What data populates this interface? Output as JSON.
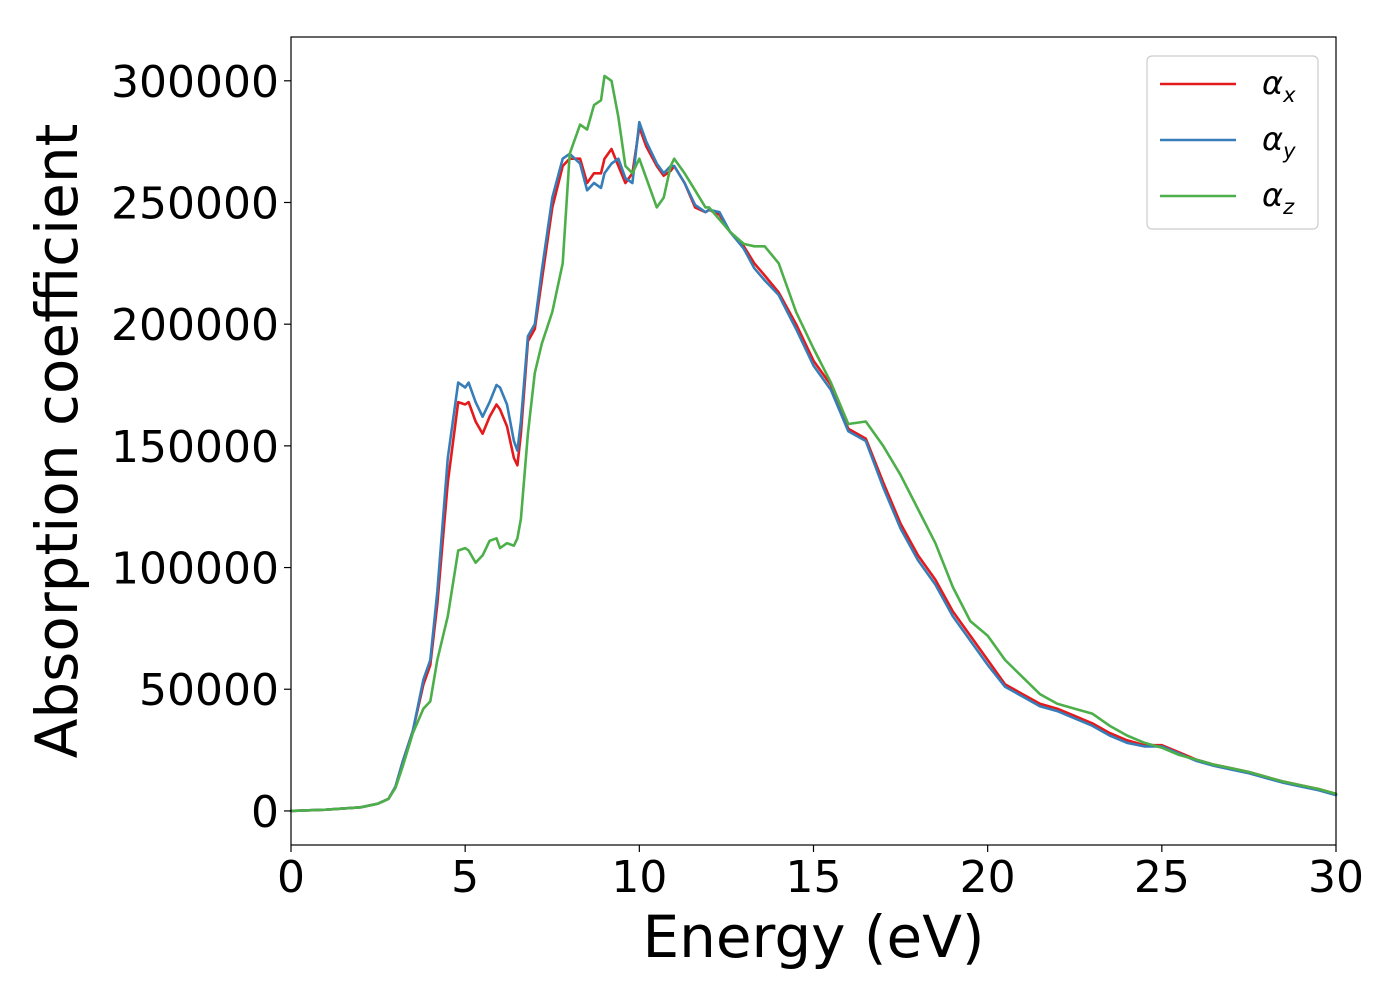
{
  "chart_data": {
    "type": "line",
    "title": "",
    "xlabel": "Energy (eV)",
    "ylabel": "Absorption coefficient",
    "xlim": [
      0,
      30
    ],
    "ylim": [
      -14000,
      318000
    ],
    "xticks": [
      0,
      5,
      10,
      15,
      20,
      25,
      30
    ],
    "yticks": [
      0,
      50000,
      100000,
      150000,
      200000,
      250000,
      300000
    ],
    "grid": false,
    "legend_position": "top-right",
    "series": [
      {
        "name": "αx",
        "symbol": "α",
        "subscript": "x",
        "color": "#e41a1c",
        "x": [
          0,
          1,
          2,
          2.5,
          2.8,
          3.0,
          3.2,
          3.5,
          3.8,
          4.0,
          4.2,
          4.5,
          4.8,
          5.0,
          5.1,
          5.3,
          5.5,
          5.7,
          5.9,
          6.0,
          6.2,
          6.4,
          6.5,
          6.6,
          6.8,
          7.0,
          7.2,
          7.5,
          7.8,
          8.0,
          8.3,
          8.5,
          8.7,
          8.9,
          9.0,
          9.2,
          9.4,
          9.6,
          9.8,
          10.0,
          10.2,
          10.5,
          10.7,
          10.9,
          11.0,
          11.3,
          11.6,
          11.9,
          12.0,
          12.3,
          12.6,
          13.0,
          13.3,
          13.6,
          14.0,
          14.5,
          15.0,
          15.5,
          16.0,
          16.5,
          17.0,
          17.5,
          18.0,
          18.5,
          19.0,
          19.5,
          20.0,
          20.5,
          21.0,
          21.5,
          22.0,
          22.5,
          23.0,
          23.5,
          24.0,
          24.5,
          25.0,
          25.5,
          26.0,
          26.5,
          27.0,
          27.5,
          28.0,
          28.5,
          29.0,
          29.5,
          30.0
        ],
        "values": [
          0,
          500,
          1500,
          3000,
          5000,
          10000,
          20000,
          33000,
          52000,
          60000,
          85000,
          135000,
          168000,
          167000,
          168000,
          160000,
          155000,
          162000,
          167000,
          165000,
          158000,
          145000,
          142000,
          155000,
          193000,
          198000,
          218000,
          248000,
          265000,
          268000,
          268000,
          258000,
          262000,
          262000,
          268000,
          272000,
          265000,
          258000,
          262000,
          281000,
          273000,
          265000,
          261000,
          263000,
          265000,
          258000,
          248000,
          246000,
          247000,
          245000,
          238000,
          232000,
          225000,
          220000,
          213000,
          200000,
          185000,
          175000,
          157000,
          153000,
          135000,
          118000,
          105000,
          95000,
          82000,
          72000,
          62000,
          52000,
          48000,
          44000,
          42000,
          39000,
          36000,
          32000,
          29000,
          27000,
          27000,
          24000,
          21000,
          19000,
          17500,
          16000,
          14000,
          12000,
          10500,
          9000,
          7000
        ]
      },
      {
        "name": "αy",
        "symbol": "α",
        "subscript": "y",
        "color": "#377eb8",
        "x": [
          0,
          1,
          2,
          2.5,
          2.8,
          3.0,
          3.2,
          3.5,
          3.8,
          4.0,
          4.2,
          4.5,
          4.8,
          5.0,
          5.1,
          5.3,
          5.5,
          5.7,
          5.9,
          6.0,
          6.2,
          6.4,
          6.5,
          6.6,
          6.8,
          7.0,
          7.2,
          7.5,
          7.8,
          8.0,
          8.3,
          8.5,
          8.7,
          8.9,
          9.0,
          9.2,
          9.4,
          9.6,
          9.8,
          10.0,
          10.2,
          10.5,
          10.7,
          10.9,
          11.0,
          11.3,
          11.6,
          11.9,
          12.0,
          12.3,
          12.6,
          13.0,
          13.3,
          13.6,
          14.0,
          14.5,
          15.0,
          15.5,
          16.0,
          16.5,
          17.0,
          17.5,
          18.0,
          18.5,
          19.0,
          19.5,
          20.0,
          20.5,
          21.0,
          21.5,
          22.0,
          22.5,
          23.0,
          23.5,
          24.0,
          24.5,
          25.0,
          25.5,
          26.0,
          26.5,
          27.0,
          27.5,
          28.0,
          28.5,
          29.0,
          29.5,
          30.0
        ],
        "values": [
          0,
          500,
          1500,
          3000,
          5000,
          10000,
          20000,
          33000,
          54000,
          62000,
          90000,
          145000,
          176000,
          174000,
          176000,
          168000,
          162000,
          168000,
          175000,
          174000,
          167000,
          152000,
          148000,
          160000,
          195000,
          200000,
          222000,
          252000,
          268000,
          270000,
          266000,
          255000,
          258000,
          256000,
          262000,
          266000,
          268000,
          260000,
          258000,
          283000,
          275000,
          266000,
          262000,
          265000,
          265000,
          258000,
          249000,
          246000,
          247000,
          246000,
          238000,
          231000,
          223000,
          218000,
          212000,
          198000,
          183000,
          173000,
          156000,
          152000,
          133000,
          116000,
          103000,
          93000,
          80000,
          70000,
          60000,
          51000,
          47000,
          43000,
          41000,
          38000,
          35000,
          31000,
          28000,
          26500,
          26500,
          23500,
          20500,
          18500,
          17000,
          15500,
          13500,
          11500,
          10000,
          8500,
          6500
        ]
      },
      {
        "name": "αz",
        "symbol": "α",
        "subscript": "z",
        "color": "#4daf4a",
        "x": [
          0,
          1,
          2,
          2.5,
          2.8,
          3.0,
          3.2,
          3.5,
          3.8,
          4.0,
          4.2,
          4.5,
          4.8,
          5.0,
          5.1,
          5.3,
          5.5,
          5.7,
          5.9,
          6.0,
          6.2,
          6.4,
          6.5,
          6.6,
          6.8,
          7.0,
          7.2,
          7.5,
          7.8,
          8.0,
          8.3,
          8.5,
          8.7,
          8.9,
          9.0,
          9.2,
          9.4,
          9.6,
          9.8,
          10.0,
          10.2,
          10.5,
          10.7,
          10.9,
          11.0,
          11.3,
          11.6,
          11.9,
          12.0,
          12.3,
          12.6,
          13.0,
          13.3,
          13.6,
          14.0,
          14.5,
          15.0,
          15.5,
          16.0,
          16.5,
          17.0,
          17.5,
          18.0,
          18.5,
          19.0,
          19.5,
          20.0,
          20.5,
          21.0,
          21.5,
          22.0,
          22.5,
          23.0,
          23.5,
          24.0,
          24.5,
          25.0,
          25.5,
          26.0,
          26.5,
          27.0,
          27.5,
          28.0,
          28.5,
          29.0,
          29.5,
          30.0
        ],
        "values": [
          0,
          500,
          1500,
          3000,
          5000,
          9500,
          18000,
          32000,
          42000,
          45000,
          62000,
          80000,
          107000,
          108000,
          107000,
          102000,
          105000,
          111000,
          112000,
          108000,
          110000,
          109000,
          112000,
          120000,
          155000,
          180000,
          192000,
          205000,
          225000,
          270000,
          282000,
          280000,
          290000,
          292000,
          302000,
          300000,
          285000,
          265000,
          262000,
          268000,
          260000,
          248000,
          252000,
          265000,
          268000,
          262000,
          255000,
          248000,
          248000,
          243000,
          238000,
          233000,
          232000,
          232000,
          225000,
          205000,
          190000,
          176000,
          159000,
          160000,
          150000,
          138000,
          124000,
          110000,
          92000,
          78000,
          72000,
          62000,
          55000,
          48000,
          44000,
          42000,
          40000,
          35000,
          31000,
          28000,
          26000,
          23000,
          21000,
          19000,
          17500,
          16000,
          14000,
          12000,
          10500,
          9000,
          7000
        ]
      }
    ]
  }
}
